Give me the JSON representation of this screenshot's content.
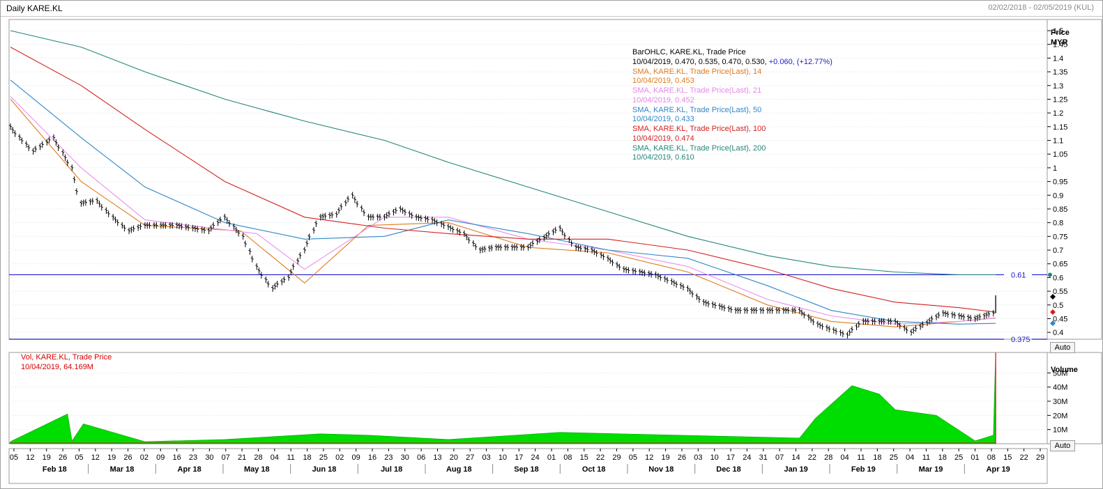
{
  "header": {
    "title": "Daily KARE.KL",
    "date_range": "02/02/2018 - 02/05/2019 (KUL)"
  },
  "legend": {
    "bar_title": "BarOHLC, KARE.KL, Trade Price",
    "bar_values": "10/04/2019, 0.470, 0.535, 0.470, 0.530,",
    "bar_change": "+0.060, (+12.77%)",
    "sma14_name": "SMA, KARE.KL, Trade Price(Last),  14",
    "sma14_value": "10/04/2019, 0.453",
    "sma21_name": "SMA, KARE.KL, Trade Price(Last),  21",
    "sma21_value": "10/04/2019, 0.452",
    "sma50_name": "SMA, KARE.KL, Trade Price(Last),  50",
    "sma50_value": "10/04/2019, 0.433",
    "sma100_name": "SMA, KARE.KL, Trade Price(Last),  100",
    "sma100_value": "10/04/2019, 0.474",
    "sma200_name": "SMA, KARE.KL, Trade Price(Last),  200",
    "sma200_value": "10/04/2019, 0.610"
  },
  "volume_legend": {
    "title": "Vol, KARE.KL, Trade Price",
    "value": "10/04/2019, 64.169M"
  },
  "buttons": {
    "auto_price": "Auto",
    "auto_volume": "Auto"
  },
  "colors": {
    "sma14": "#e07b1b",
    "sma21": "#ea8fea",
    "sma50": "#2f86c8",
    "sma100": "#d42020",
    "sma200": "#23857a",
    "hline": "#1a1acc",
    "volume": "#00dd00"
  },
  "chart_data": [
    {
      "type": "line",
      "title": "Daily KARE.KL",
      "ylabel": "Price MYR",
      "ylim": [
        0.375,
        1.5
      ],
      "ytick_labels": [
        "1.5",
        "1.45",
        "1.4",
        "1.35",
        "1.3",
        "1.25",
        "1.2",
        "1.15",
        "1.1",
        "1.05",
        "1",
        "0.95",
        "0.9",
        "0.85",
        "0.8",
        "0.75",
        "0.7",
        "0.65",
        "0.6",
        "0.55",
        "0.5",
        "0.45",
        "0.4"
      ],
      "horizontal_lines": [
        {
          "value": 0.61,
          "label": "0.61"
        },
        {
          "value": 0.375,
          "label": "0.375"
        }
      ],
      "ohlc_approx_close": {
        "dates": [
          "2018-02-02",
          "2018-02-12",
          "2018-02-21",
          "2018-03-01",
          "2018-03-05",
          "2018-03-12",
          "2018-03-19",
          "2018-03-26",
          "2018-04-02",
          "2018-04-16",
          "2018-04-30",
          "2018-05-07",
          "2018-05-15",
          "2018-05-21",
          "2018-05-28",
          "2018-06-04",
          "2018-06-11",
          "2018-06-18",
          "2018-06-25",
          "2018-07-02",
          "2018-07-09",
          "2018-07-16",
          "2018-07-23",
          "2018-07-30",
          "2018-08-06",
          "2018-08-20",
          "2018-08-27",
          "2018-09-03",
          "2018-09-17",
          "2018-10-01",
          "2018-10-08",
          "2018-10-15",
          "2018-10-22",
          "2018-10-29",
          "2018-11-12",
          "2018-11-26",
          "2018-12-03",
          "2018-12-17",
          "2018-12-31",
          "2019-01-14",
          "2019-01-22",
          "2019-02-04",
          "2019-02-11",
          "2019-02-25",
          "2019-03-04",
          "2019-03-18",
          "2019-04-01",
          "2019-04-09",
          "2019-04-10"
        ],
        "values": [
          1.15,
          1.06,
          1.11,
          1.0,
          0.87,
          0.88,
          0.82,
          0.77,
          0.79,
          0.79,
          0.77,
          0.82,
          0.75,
          0.64,
          0.56,
          0.6,
          0.7,
          0.82,
          0.83,
          0.9,
          0.82,
          0.82,
          0.85,
          0.82,
          0.81,
          0.76,
          0.7,
          0.71,
          0.71,
          0.78,
          0.71,
          0.7,
          0.67,
          0.63,
          0.61,
          0.56,
          0.51,
          0.48,
          0.48,
          0.48,
          0.43,
          0.39,
          0.44,
          0.44,
          0.4,
          0.47,
          0.45,
          0.47,
          0.53
        ]
      },
      "series": [
        {
          "name": "SMA, KARE.KL, Trade Price(Last),  14",
          "x": [
            "2018-02-02",
            "2018-03-05",
            "2018-04-02",
            "2018-05-14",
            "2018-06-11",
            "2018-07-09",
            "2018-08-13",
            "2018-09-17",
            "2018-10-22",
            "2018-11-26",
            "2018-12-31",
            "2019-01-28",
            "2019-02-25",
            "2019-03-25",
            "2019-04-10"
          ],
          "values": [
            1.25,
            0.95,
            0.79,
            0.77,
            0.58,
            0.79,
            0.8,
            0.71,
            0.69,
            0.62,
            0.5,
            0.44,
            0.42,
            0.44,
            0.453
          ]
        },
        {
          "name": "SMA, KARE.KL, Trade Price(Last),  21",
          "x": [
            "2018-02-02",
            "2018-03-05",
            "2018-04-02",
            "2018-05-21",
            "2018-06-11",
            "2018-07-16",
            "2018-08-13",
            "2018-09-17",
            "2018-10-22",
            "2018-11-26",
            "2018-12-31",
            "2019-01-28",
            "2019-02-25",
            "2019-03-25",
            "2019-04-10"
          ],
          "values": [
            1.26,
            1.0,
            0.81,
            0.76,
            0.63,
            0.82,
            0.82,
            0.74,
            0.7,
            0.64,
            0.52,
            0.46,
            0.43,
            0.44,
            0.452
          ]
        },
        {
          "name": "SMA, KARE.KL, Trade Price(Last),  50",
          "x": [
            "2018-02-02",
            "2018-03-05",
            "2018-04-02",
            "2018-05-07",
            "2018-06-11",
            "2018-07-16",
            "2018-08-13",
            "2018-09-17",
            "2018-10-22",
            "2018-11-26",
            "2018-12-31",
            "2019-01-28",
            "2019-02-25",
            "2019-03-25",
            "2019-04-10"
          ],
          "values": [
            1.32,
            1.11,
            0.93,
            0.8,
            0.74,
            0.75,
            0.81,
            0.76,
            0.7,
            0.67,
            0.57,
            0.48,
            0.44,
            0.43,
            0.433
          ]
        },
        {
          "name": "SMA, KARE.KL, Trade Price(Last),  100",
          "x": [
            "2018-02-02",
            "2018-03-05",
            "2018-04-02",
            "2018-05-07",
            "2018-06-11",
            "2018-07-16",
            "2018-08-13",
            "2018-09-17",
            "2018-10-22",
            "2018-11-26",
            "2018-12-31",
            "2019-01-28",
            "2019-02-25",
            "2019-03-25",
            "2019-04-10"
          ],
          "values": [
            1.44,
            1.3,
            1.14,
            0.95,
            0.82,
            0.78,
            0.76,
            0.74,
            0.74,
            0.7,
            0.63,
            0.56,
            0.51,
            0.49,
            0.474
          ]
        },
        {
          "name": "SMA, KARE.KL, Trade Price(Last),  200",
          "x": [
            "2018-02-02",
            "2018-03-05",
            "2018-04-02",
            "2018-05-07",
            "2018-06-11",
            "2018-07-16",
            "2018-08-13",
            "2018-09-17",
            "2018-10-22",
            "2018-11-26",
            "2018-12-31",
            "2019-01-28",
            "2019-02-25",
            "2019-03-25",
            "2019-04-10"
          ],
          "values": [
            1.5,
            1.44,
            1.35,
            1.25,
            1.17,
            1.1,
            1.02,
            0.93,
            0.84,
            0.75,
            0.68,
            0.64,
            0.62,
            0.61,
            0.61
          ]
        }
      ],
      "xlim": [
        "2018-02-02",
        "2019-05-02"
      ]
    },
    {
      "type": "area",
      "title": "Vol, KARE.KL, Trade Price",
      "ylabel": "Volume",
      "ylim": [
        0,
        60
      ],
      "ytick_labels": [
        "50M",
        "40M",
        "30M",
        "20M",
        "10M"
      ],
      "x": [
        "2018-02-02",
        "2018-02-27",
        "2018-03-01",
        "2018-03-06",
        "2018-04-02",
        "2018-05-07",
        "2018-06-18",
        "2018-07-09",
        "2018-08-13",
        "2018-10-01",
        "2019-01-14",
        "2019-01-21",
        "2019-02-06",
        "2019-02-18",
        "2019-02-25",
        "2019-03-15",
        "2019-04-01",
        "2019-04-09",
        "2019-04-10"
      ],
      "values": [
        1.5,
        21,
        2,
        14,
        1.5,
        3,
        7,
        6,
        3,
        8,
        4,
        18,
        41,
        35,
        24,
        20,
        2,
        6,
        64.2
      ]
    }
  ],
  "x_axis": {
    "days": [
      "05",
      "12",
      "19",
      "26",
      "05",
      "12",
      "19",
      "26",
      "02",
      "09",
      "16",
      "23",
      "30",
      "07",
      "21",
      "28",
      "04",
      "11",
      "18",
      "25",
      "02",
      "09",
      "16",
      "23",
      "30",
      "06",
      "13",
      "20",
      "27",
      "03",
      "10",
      "17",
      "24",
      "01",
      "08",
      "15",
      "22",
      "29",
      "05",
      "12",
      "19",
      "26",
      "03",
      "10",
      "17",
      "24",
      "31",
      "07",
      "14",
      "22",
      "28",
      "04",
      "11",
      "18",
      "25",
      "04",
      "11",
      "18",
      "25",
      "01",
      "08",
      "15",
      "22",
      "29"
    ],
    "months": [
      "Feb 18",
      "Mar 18",
      "Apr 18",
      "May 18",
      "Jun 18",
      "Jul 18",
      "Aug 18",
      "Sep 18",
      "Oct 18",
      "Nov 18",
      "Dec 18",
      "Jan 19",
      "Feb 19",
      "Mar 19",
      "Apr 19"
    ]
  }
}
